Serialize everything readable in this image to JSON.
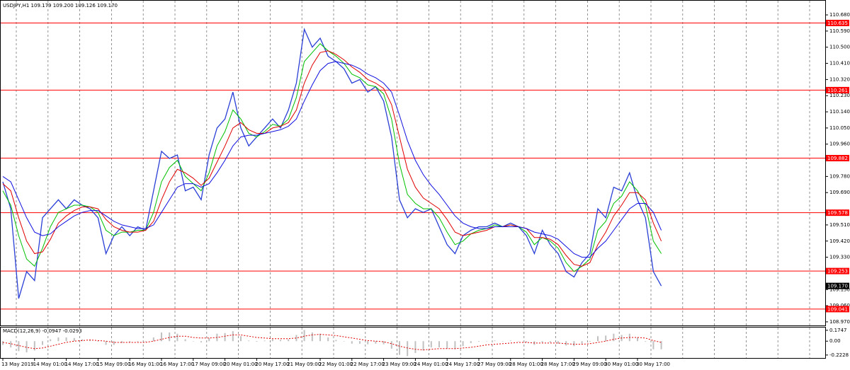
{
  "chart_data": [
    {
      "type": "line",
      "title": "USDJPY,H1  109.179 109.200 109.126 109.170",
      "categories": [
        "13 May 2019",
        null,
        null,
        null,
        "14 May 01:00",
        null,
        null,
        null,
        "14 May 17:00",
        null,
        null,
        null,
        "15 May 09:00",
        null,
        null,
        null,
        "16 May 01:00",
        null,
        null,
        null,
        "16 May 17:00",
        null,
        null,
        null,
        "17 May 09:00",
        null,
        null,
        null,
        "20 May 01:00",
        null,
        null,
        null,
        "20 May 17:00",
        null,
        null,
        null,
        "21 May 09:00",
        null,
        null,
        null,
        "22 May 01:00",
        null,
        null,
        null,
        "22 May 17:00",
        null,
        null,
        null,
        "23 May 09:00",
        null,
        null,
        null,
        "24 May 01:00",
        null,
        null,
        null,
        "24 May 17:00",
        null,
        null,
        null,
        "27 May 09:00",
        null,
        null,
        null,
        "28 May 01:00",
        null,
        null,
        null,
        "28 May 17:00",
        null,
        null,
        null,
        "29 May 09:00",
        null,
        null,
        null,
        "30 May 01:00",
        null,
        null,
        null,
        "30 May 17:00",
        null,
        null,
        null
      ],
      "series": [
        {
          "color": "#2a3fd6",
          "values": [
            109.75,
            109.6,
            109.1,
            109.25,
            109.2,
            109.55,
            109.6,
            109.65,
            109.6,
            109.65,
            109.62,
            109.6,
            109.55,
            109.35,
            109.45,
            109.5,
            109.45,
            109.5,
            109.48,
            109.7,
            109.92,
            109.88,
            109.9,
            109.7,
            109.72,
            109.65,
            109.9,
            110.05,
            110.1,
            110.25,
            110.05,
            109.95,
            110.0,
            110.05,
            110.1,
            110.05,
            110.15,
            110.3,
            110.6,
            110.5,
            110.55,
            110.45,
            110.42,
            110.38,
            110.3,
            110.32,
            110.25,
            110.28,
            110.2,
            110.0,
            109.65,
            109.55,
            109.6,
            109.58,
            109.6,
            109.5,
            109.4,
            109.35,
            109.45,
            109.48,
            109.5,
            109.5,
            109.52,
            109.5,
            109.52,
            109.5,
            109.45,
            109.35,
            109.48,
            109.4,
            109.35,
            109.25,
            109.22,
            109.3,
            109.35,
            109.6,
            109.55,
            109.72,
            109.7,
            109.8,
            109.65,
            109.55,
            109.25,
            109.17
          ]
        },
        {
          "color": "#00c000",
          "values": [
            109.7,
            109.62,
            109.45,
            109.32,
            109.28,
            109.38,
            109.5,
            109.58,
            109.6,
            109.62,
            109.62,
            109.61,
            109.58,
            109.48,
            109.45,
            109.47,
            109.47,
            109.48,
            109.48,
            109.58,
            109.75,
            109.83,
            109.87,
            109.78,
            109.74,
            109.7,
            109.8,
            109.95,
            110.03,
            110.15,
            110.1,
            110.02,
            110.0,
            110.03,
            110.07,
            110.06,
            110.1,
            110.22,
            110.42,
            110.47,
            110.52,
            110.48,
            110.45,
            110.41,
            110.35,
            110.33,
            110.29,
            110.28,
            110.24,
            110.1,
            109.85,
            109.68,
            109.63,
            109.6,
            109.6,
            109.55,
            109.47,
            109.4,
            109.42,
            109.46,
            109.48,
            109.49,
            109.51,
            109.5,
            109.51,
            109.5,
            109.47,
            109.4,
            109.44,
            109.42,
            109.38,
            109.3,
            109.25,
            109.28,
            109.32,
            109.48,
            109.53,
            109.63,
            109.67,
            109.75,
            109.7,
            109.62,
            109.42,
            109.35
          ]
        },
        {
          "color": "#e00000",
          "values": [
            109.74,
            109.7,
            109.55,
            109.42,
            109.35,
            109.36,
            109.43,
            109.52,
            109.56,
            109.59,
            109.61,
            109.61,
            109.6,
            109.54,
            109.5,
            109.48,
            109.47,
            109.47,
            109.48,
            109.53,
            109.65,
            109.75,
            109.82,
            109.8,
            109.77,
            109.73,
            109.77,
            109.86,
            109.95,
            110.05,
            110.08,
            110.04,
            110.02,
            110.02,
            110.05,
            110.06,
            110.08,
            110.15,
            110.3,
            110.4,
            110.47,
            110.48,
            110.46,
            110.43,
            110.39,
            110.36,
            110.32,
            110.3,
            110.27,
            110.18,
            110.0,
            109.82,
            109.72,
            109.66,
            109.63,
            109.6,
            109.54,
            109.47,
            109.45,
            109.46,
            109.47,
            109.48,
            109.5,
            109.5,
            109.51,
            109.5,
            109.49,
            109.44,
            109.44,
            109.43,
            109.4,
            109.34,
            109.29,
            109.28,
            109.3,
            109.4,
            109.47,
            109.56,
            109.62,
            109.69,
            109.69,
            109.65,
            109.52,
            109.42
          ]
        },
        {
          "color": "#1010e0",
          "values": [
            109.78,
            109.75,
            109.65,
            109.55,
            109.47,
            109.45,
            109.46,
            109.5,
            109.53,
            109.56,
            109.58,
            109.59,
            109.59,
            109.56,
            109.53,
            109.51,
            109.5,
            109.49,
            109.49,
            109.51,
            109.58,
            109.65,
            109.72,
            109.74,
            109.74,
            109.72,
            109.74,
            109.8,
            109.87,
            109.95,
            110.0,
            110.01,
            110.01,
            110.02,
            110.03,
            110.04,
            110.06,
            110.1,
            110.2,
            110.29,
            110.37,
            110.41,
            110.42,
            110.41,
            110.4,
            110.38,
            110.35,
            110.33,
            110.3,
            110.25,
            110.12,
            109.98,
            109.87,
            109.79,
            109.73,
            109.68,
            109.62,
            109.56,
            109.52,
            109.5,
            109.49,
            109.49,
            109.5,
            109.5,
            109.5,
            109.5,
            109.49,
            109.47,
            109.46,
            109.45,
            109.43,
            109.39,
            109.35,
            109.33,
            109.33,
            109.38,
            109.42,
            109.48,
            109.54,
            109.6,
            109.63,
            109.63,
            109.58,
            109.48
          ]
        }
      ],
      "ylim": [
        108.95,
        110.763
      ],
      "yticks": [
        {
          "value": 110.68,
          "label": "110.680"
        },
        {
          "value": 110.59,
          "label": "110.590"
        },
        {
          "value": 110.5,
          "label": "110.500"
        },
        {
          "value": 110.41,
          "label": "110.410"
        },
        {
          "value": 110.32,
          "label": "110.320"
        },
        {
          "value": 110.23,
          "label": "110.230"
        },
        {
          "value": 110.14,
          "label": "110.140"
        },
        {
          "value": 110.05,
          "label": "110.050"
        },
        {
          "value": 109.96,
          "label": "109.960"
        },
        {
          "value": 109.78,
          "label": "109.780"
        },
        {
          "value": 109.69,
          "label": "109.690"
        },
        {
          "value": 109.51,
          "label": "109.510"
        },
        {
          "value": 109.42,
          "label": "109.420"
        },
        {
          "value": 109.33,
          "label": "109.330"
        },
        {
          "value": 109.15,
          "label": "109.150"
        },
        {
          "value": 109.06,
          "label": "109.060"
        },
        {
          "value": 108.97,
          "label": "108.970"
        }
      ],
      "levels": [
        110.635,
        110.261,
        109.882,
        109.578,
        109.253,
        109.041
      ],
      "level_color": "#ff0000",
      "current_price": {
        "value": 109.17,
        "label": "109.170"
      },
      "grid": true
    },
    {
      "type": "macd",
      "title": "MACD(12,26,9) -0.0947 -0.0293",
      "series": [
        {
          "color": "#c0c0c0",
          "values": [
            -0.06,
            -0.1,
            -0.16,
            -0.18,
            -0.15,
            -0.06,
            0.03,
            0.06,
            0.06,
            0.05,
            0.03,
            0.02,
            -0.01,
            -0.06,
            -0.06,
            -0.03,
            -0.02,
            -0.01,
            -0.01,
            0.06,
            0.14,
            0.14,
            0.12,
            0.03,
            0.0,
            -0.02,
            0.05,
            0.12,
            0.13,
            0.16,
            0.08,
            0.01,
            -0.01,
            0.01,
            0.03,
            0.02,
            0.03,
            0.1,
            0.18,
            0.14,
            0.12,
            0.06,
            0.02,
            0.0,
            -0.04,
            -0.04,
            -0.05,
            -0.04,
            -0.05,
            -0.12,
            -0.22,
            -0.24,
            -0.19,
            -0.15,
            -0.1,
            -0.1,
            -0.12,
            -0.13,
            -0.08,
            -0.03,
            -0.01,
            0.0,
            0.01,
            0.0,
            0.01,
            0.0,
            -0.02,
            -0.06,
            -0.02,
            -0.02,
            -0.04,
            -0.07,
            -0.08,
            -0.04,
            -0.01,
            0.08,
            0.09,
            0.12,
            0.1,
            0.12,
            0.06,
            -0.01,
            -0.13,
            -0.13
          ]
        },
        {
          "color": "#e00000",
          "values": [
            -0.02,
            -0.04,
            -0.07,
            -0.1,
            -0.12,
            -0.11,
            -0.08,
            -0.05,
            -0.02,
            0.0,
            0.01,
            0.02,
            0.01,
            0.0,
            -0.02,
            -0.02,
            -0.02,
            -0.02,
            -0.02,
            0.0,
            0.03,
            0.06,
            0.08,
            0.08,
            0.06,
            0.05,
            0.05,
            0.06,
            0.08,
            0.1,
            0.1,
            0.08,
            0.06,
            0.05,
            0.04,
            0.04,
            0.04,
            0.05,
            0.08,
            0.1,
            0.11,
            0.1,
            0.09,
            0.07,
            0.05,
            0.03,
            0.01,
            0.0,
            -0.01,
            -0.04,
            -0.08,
            -0.11,
            -0.13,
            -0.14,
            -0.13,
            -0.12,
            -0.12,
            -0.12,
            -0.11,
            -0.1,
            -0.08,
            -0.06,
            -0.05,
            -0.04,
            -0.03,
            -0.02,
            -0.02,
            -0.03,
            -0.03,
            -0.03,
            -0.03,
            -0.04,
            -0.05,
            -0.05,
            -0.04,
            -0.02,
            0.0,
            0.03,
            0.05,
            0.06,
            0.06,
            0.05,
            0.01,
            -0.02
          ]
        }
      ],
      "ylim": [
        -0.27,
        0.23
      ],
      "yticks": [
        0.1747,
        {
          "value": 0,
          "label": "0.00"
        },
        -0.2228
      ]
    }
  ]
}
